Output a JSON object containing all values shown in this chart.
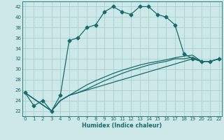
{
  "title": "",
  "xlabel": "Humidex (Indice chaleur)",
  "bg_color": "#cce8e8",
  "grid_color": "#aad0d0",
  "line_color": "#1a6b6b",
  "markersize": 2.5,
  "curve1_x": [
    0,
    1,
    2,
    3,
    4,
    5,
    6,
    7,
    8,
    9,
    10,
    11,
    12,
    13,
    14,
    15,
    16,
    17,
    18,
    19,
    20,
    21,
    22
  ],
  "curve1_y": [
    25.5,
    23.0,
    24.0,
    22.0,
    25.0,
    35.5,
    36.0,
    38.0,
    38.5,
    41.0,
    42.0,
    41.0,
    40.5,
    42.0,
    42.0,
    40.5,
    40.0,
    38.5,
    33.0,
    32.0,
    31.5,
    31.5,
    32.0
  ],
  "curve2_x": [
    0,
    3,
    4,
    5,
    6,
    7,
    8,
    9,
    10,
    11,
    12,
    13,
    14,
    15,
    16,
    17,
    18,
    19,
    20,
    21,
    22
  ],
  "curve2_y": [
    25.5,
    22.0,
    24.0,
    25.0,
    25.5,
    26.0,
    26.5,
    27.0,
    27.5,
    28.0,
    28.5,
    29.0,
    29.5,
    30.0,
    30.5,
    31.0,
    31.5,
    32.0,
    31.5,
    31.5,
    32.0
  ],
  "curve3_x": [
    0,
    3,
    4,
    5,
    6,
    7,
    8,
    9,
    10,
    11,
    12,
    13,
    14,
    15,
    16,
    17,
    18,
    19,
    20,
    21,
    22
  ],
  "curve3_y": [
    25.5,
    22.0,
    24.0,
    25.0,
    25.5,
    26.2,
    27.0,
    27.8,
    28.5,
    29.2,
    29.8,
    30.3,
    30.8,
    31.2,
    31.5,
    32.0,
    32.0,
    32.3,
    31.5,
    31.5,
    32.0
  ],
  "curve4_x": [
    0,
    3,
    4,
    5,
    6,
    7,
    8,
    9,
    10,
    11,
    12,
    13,
    14,
    15,
    16,
    17,
    18,
    19,
    20,
    21,
    22
  ],
  "curve4_y": [
    25.5,
    22.0,
    24.0,
    25.0,
    26.0,
    27.0,
    27.8,
    28.5,
    29.2,
    29.8,
    30.3,
    30.8,
    31.2,
    31.5,
    31.8,
    32.2,
    32.5,
    32.7,
    31.5,
    31.5,
    32.0
  ],
  "xlim": [
    -0.3,
    22.3
  ],
  "ylim": [
    21.0,
    43.0
  ],
  "yticks": [
    22,
    24,
    26,
    28,
    30,
    32,
    34,
    36,
    38,
    40,
    42
  ],
  "xticks": [
    0,
    1,
    2,
    3,
    4,
    5,
    6,
    7,
    8,
    9,
    10,
    11,
    12,
    13,
    14,
    15,
    16,
    17,
    18,
    19,
    20,
    21,
    22
  ]
}
